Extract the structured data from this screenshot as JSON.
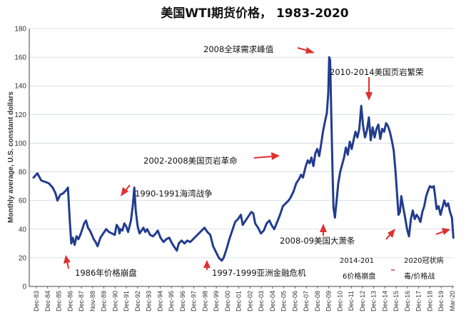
{
  "chart_data": {
    "type": "line",
    "title": "美国WTI期货价格， 1983-2020",
    "ylabel": "Monthly average, U.S. constant dollars",
    "xlabel": "",
    "ylim": [
      0,
      180
    ],
    "yticks": [
      0,
      20,
      40,
      60,
      80,
      100,
      120,
      140,
      160,
      180
    ],
    "grid": true,
    "categories": [
      "Dec-83",
      "Dec-84",
      "Dec-85",
      "Dec-86",
      "Dec-87",
      "Nov-88",
      "Dec-89",
      "Dec-90",
      "Dec-91",
      "Dec-92",
      "Dec-93",
      "Dec-94",
      "Dec-95",
      "Dec-96",
      "Dec-97",
      "Dec-98",
      "Dec-99",
      "Dec-00",
      "Dec-01",
      "Dec-02",
      "Dec-03",
      "Dec-04",
      "Dec-05",
      "Dec-06",
      "Dec-07",
      "Dec-08",
      "Dec-09",
      "Dec-10",
      "Dec-11",
      "Dec-12",
      "Dec-13",
      "Dec-14",
      "Dec-15",
      "Dec-16",
      "Dec-17",
      "Dec-18",
      "Dec-19",
      "Mar-20"
    ],
    "series": [
      {
        "color": "#223c8e",
        "points": [
          [
            1983.0,
            76
          ],
          [
            1983.4,
            79
          ],
          [
            1983.8,
            74
          ],
          [
            1984.2,
            73
          ],
          [
            1984.6,
            72
          ],
          [
            1985.0,
            69
          ],
          [
            1985.3,
            65
          ],
          [
            1985.5,
            60
          ],
          [
            1985.8,
            64
          ],
          [
            1986.1,
            65
          ],
          [
            1986.4,
            67
          ],
          [
            1986.6,
            69
          ],
          [
            1986.8,
            45
          ],
          [
            1986.95,
            30
          ],
          [
            1987.1,
            34
          ],
          [
            1987.3,
            29
          ],
          [
            1987.5,
            35
          ],
          [
            1987.7,
            33
          ],
          [
            1987.9,
            36
          ],
          [
            1988.1,
            40
          ],
          [
            1988.3,
            44
          ],
          [
            1988.5,
            46
          ],
          [
            1988.7,
            41
          ],
          [
            1988.9,
            39
          ],
          [
            1989.1,
            36
          ],
          [
            1989.3,
            33
          ],
          [
            1989.5,
            31
          ],
          [
            1989.7,
            28
          ],
          [
            1990.0,
            34
          ],
          [
            1990.3,
            37
          ],
          [
            1990.6,
            40
          ],
          [
            1990.9,
            38
          ],
          [
            1991.2,
            37
          ],
          [
            1991.5,
            36
          ],
          [
            1991.7,
            43
          ],
          [
            1991.9,
            41
          ],
          [
            1992.0,
            37
          ],
          [
            1992.1,
            40
          ],
          [
            1992.3,
            39
          ],
          [
            1992.5,
            44
          ],
          [
            1992.7,
            42
          ],
          [
            1992.9,
            38
          ],
          [
            1993.2,
            46
          ],
          [
            1993.4,
            57
          ],
          [
            1993.55,
            69
          ],
          [
            1993.7,
            53
          ],
          [
            1993.9,
            42
          ],
          [
            1994.1,
            37
          ],
          [
            1994.3,
            39
          ],
          [
            1994.5,
            41
          ],
          [
            1994.7,
            38
          ],
          [
            1994.9,
            40
          ],
          [
            1995.2,
            36
          ],
          [
            1995.5,
            35
          ],
          [
            1995.8,
            37
          ],
          [
            1996.0,
            39
          ],
          [
            1996.3,
            34
          ],
          [
            1996.6,
            31
          ],
          [
            1996.9,
            33
          ],
          [
            1997.2,
            34
          ],
          [
            1997.5,
            30
          ],
          [
            1997.8,
            27
          ],
          [
            1998.0,
            25
          ],
          [
            1998.2,
            30
          ],
          [
            1998.5,
            32
          ],
          [
            1998.8,
            30
          ],
          [
            1999.1,
            32
          ],
          [
            1999.4,
            31
          ],
          [
            1999.7,
            33
          ],
          [
            2000.0,
            35
          ],
          [
            2000.3,
            37
          ],
          [
            2000.6,
            39
          ],
          [
            2000.9,
            41
          ],
          [
            2001.2,
            38
          ],
          [
            2001.5,
            36
          ],
          [
            2001.8,
            28
          ],
          [
            2002.1,
            24
          ],
          [
            2002.4,
            20
          ],
          [
            2002.7,
            18
          ],
          [
            2002.9,
            20
          ],
          [
            2003.2,
            26
          ],
          [
            2003.5,
            33
          ],
          [
            2003.8,
            39
          ],
          [
            2004.1,
            45
          ],
          [
            2004.4,
            47
          ],
          [
            2004.7,
            50
          ],
          [
            2004.9,
            43
          ],
          [
            2005.2,
            46
          ],
          [
            2005.5,
            49
          ],
          [
            2005.8,
            52
          ],
          [
            2006.0,
            51
          ],
          [
            2006.2,
            44
          ],
          [
            2006.5,
            41
          ],
          [
            2006.8,
            37
          ],
          [
            2007.1,
            39
          ],
          [
            2007.4,
            44
          ],
          [
            2007.7,
            46
          ],
          [
            2007.9,
            43
          ],
          [
            2008.2,
            40
          ],
          [
            2008.5,
            45
          ],
          [
            2008.8,
            50
          ],
          [
            2009.1,
            56
          ],
          [
            2009.4,
            58
          ],
          [
            2009.7,
            60
          ],
          [
            2009.9,
            62
          ],
          [
            2010.2,
            66
          ],
          [
            2010.5,
            72
          ],
          [
            2010.8,
            75
          ],
          [
            2011.0,
            78
          ],
          [
            2011.2,
            76
          ],
          [
            2011.5,
            84
          ],
          [
            2011.7,
            88
          ],
          [
            2011.9,
            86
          ],
          [
            2012.1,
            90
          ],
          [
            2012.3,
            84
          ],
          [
            2012.5,
            93
          ],
          [
            2012.7,
            96
          ],
          [
            2012.9,
            91
          ],
          [
            2013.1,
            99
          ],
          [
            2013.3,
            108
          ],
          [
            2013.5,
            115
          ],
          [
            2013.7,
            121
          ],
          [
            2013.85,
            135
          ],
          [
            2013.95,
            160
          ],
          [
            2014.05,
            158
          ],
          [
            2014.15,
            125
          ],
          [
            2014.3,
            80
          ],
          [
            2014.4,
            55
          ],
          [
            2014.55,
            48
          ],
          [
            2014.7,
            58
          ],
          [
            2014.9,
            72
          ],
          [
            2015.1,
            80
          ],
          [
            2015.3,
            85
          ],
          [
            2015.5,
            90
          ],
          [
            2015.7,
            97
          ],
          [
            2015.9,
            92
          ],
          [
            2016.1,
            101
          ],
          [
            2016.3,
            96
          ],
          [
            2016.5,
            102
          ],
          [
            2016.7,
            108
          ],
          [
            2016.9,
            104
          ],
          [
            2017.1,
            110
          ],
          [
            2017.3,
            126
          ],
          [
            2017.5,
            112
          ],
          [
            2017.7,
            104
          ],
          [
            2017.9,
            109
          ],
          [
            2018.1,
            118
          ],
          [
            2018.3,
            102
          ],
          [
            2018.5,
            111
          ],
          [
            2018.7,
            104
          ],
          [
            2018.9,
            110
          ],
          [
            2019.1,
            113
          ],
          [
            2019.3,
            103
          ],
          [
            2019.5,
            110
          ],
          [
            2019.7,
            108
          ],
          [
            2019.9,
            114
          ],
          [
            2020.1,
            112
          ],
          [
            2020.3,
            108
          ],
          [
            2020.5,
            102
          ],
          [
            2020.7,
            95
          ],
          [
            2020.9,
            80
          ],
          [
            2021.1,
            60
          ],
          [
            2021.2,
            50
          ],
          [
            2021.35,
            52
          ],
          [
            2021.5,
            63
          ],
          [
            2021.7,
            55
          ],
          [
            2021.9,
            48
          ],
          [
            2022.1,
            40
          ],
          [
            2022.3,
            35
          ],
          [
            2022.5,
            47
          ],
          [
            2022.7,
            53
          ],
          [
            2022.9,
            47
          ],
          [
            2023.1,
            50
          ],
          [
            2023.3,
            48
          ],
          [
            2023.5,
            45
          ],
          [
            2023.7,
            52
          ],
          [
            2023.9,
            56
          ],
          [
            2024.1,
            63
          ],
          [
            2024.3,
            67
          ],
          [
            2024.5,
            70
          ],
          [
            2024.7,
            69
          ],
          [
            2024.9,
            70
          ],
          [
            2025.0,
            65
          ],
          [
            2025.2,
            54
          ],
          [
            2025.4,
            56
          ],
          [
            2025.6,
            50
          ],
          [
            2025.8,
            55
          ],
          [
            2026.0,
            60
          ],
          [
            2026.2,
            56
          ],
          [
            2026.4,
            58
          ],
          [
            2026.6,
            52
          ],
          [
            2026.8,
            48
          ],
          [
            2026.95,
            34
          ]
        ]
      }
    ],
    "annotations": [
      {
        "text": "2008全球需求峰值"
      },
      {
        "text": "2010-2014美国页岩繁荣"
      },
      {
        "text": "2002-2008美国页岩革命"
      },
      {
        "text": "1990-1991海湾战争"
      },
      {
        "text": "2008-09美国大萧条"
      },
      {
        "text": "1986年价格崩盘"
      },
      {
        "text": "1997-1999亚洲金融危机"
      },
      {
        "text": "2014-201"
      },
      {
        "text": "6价格崩盘"
      },
      {
        "text": "2020冠状病"
      },
      {
        "text": "毒/价格战"
      }
    ]
  }
}
